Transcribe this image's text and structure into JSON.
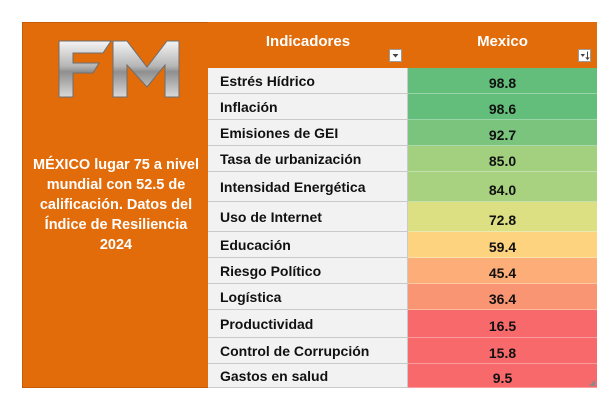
{
  "sidebar": {
    "logo_text": "FM",
    "caption": "MÉXICO lugar 75 a nivel mundial con 52.5 de calificación. Datos del Índice de Resiliencia 2024"
  },
  "table": {
    "header_indicator": "Indicadores",
    "header_country": "Mexico",
    "rows": [
      {
        "name": "Estrés Hídrico",
        "value": "98.8",
        "color": "#63BE7B"
      },
      {
        "name": "Inflación",
        "value": "98.6",
        "color": "#64BE7B"
      },
      {
        "name": "Emisiones de GEI",
        "value": "92.7",
        "color": "#7AC47D"
      },
      {
        "name": "Tasa de urbanización",
        "value": "85.0",
        "color": "#A2D07F"
      },
      {
        "name": "Intensidad Energética",
        "value": "84.0",
        "color": "#A8D27F"
      },
      {
        "name": "Uso de Internet",
        "value": "72.8",
        "color": "#DCE082"
      },
      {
        "name": "Educación",
        "value": "59.4",
        "color": "#FED380"
      },
      {
        "name": "Riesgo Político",
        "value": "45.4",
        "color": "#FCAD78"
      },
      {
        "name": "Logística",
        "value": "36.4",
        "color": "#FA9573"
      },
      {
        "name": "Productividad",
        "value": "16.5",
        "color": "#F8696B"
      },
      {
        "name": "Control de Corrupción",
        "value": "15.8",
        "color": "#F8696B"
      },
      {
        "name": "Gastos en salud",
        "value": "9.5",
        "color": "#F8696B"
      }
    ]
  },
  "colors": {
    "accent": "#E36C0A",
    "label_bg": "#F2F2F2"
  }
}
